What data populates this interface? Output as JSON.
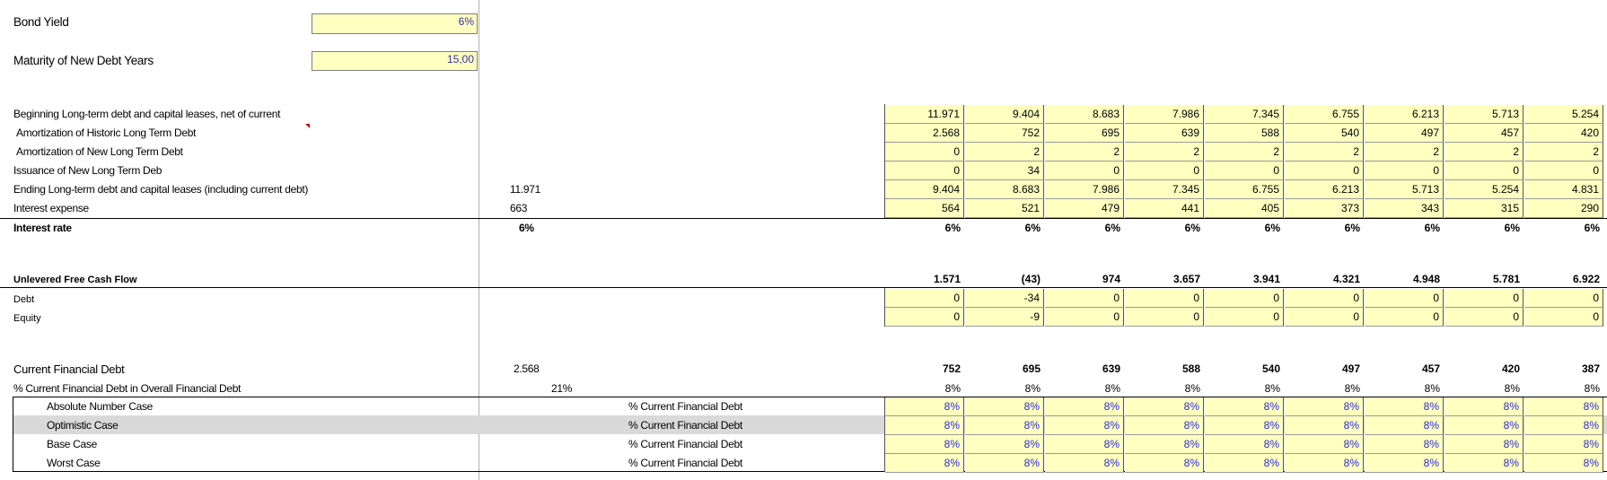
{
  "inputs": {
    "bond_yield_label": "Bond Yield",
    "bond_yield_value": "6%",
    "maturity_label": "Maturity of New Debt Years",
    "maturity_value": "15,00"
  },
  "debt_schedule": {
    "rows": [
      {
        "label": "Beginning Long-term debt and capital leases, net of current",
        "base": "",
        "values": [
          "11.971",
          "9.404",
          "8.683",
          "7.986",
          "7.345",
          "6.755",
          "6.213",
          "5.713",
          "5.254"
        ]
      },
      {
        "label": "Amortization of Historic Long Term Debt",
        "base": "",
        "values": [
          "2.568",
          "752",
          "695",
          "639",
          "588",
          "540",
          "497",
          "457",
          "420"
        ]
      },
      {
        "label": "Amortization of New Long Term Debt",
        "base": "",
        "values": [
          "0",
          "2",
          "2",
          "2",
          "2",
          "2",
          "2",
          "2",
          "2"
        ]
      },
      {
        "label": "Issuance of New Long Term Deb",
        "base": "",
        "values": [
          "0",
          "34",
          "0",
          "0",
          "0",
          "0",
          "0",
          "0",
          "0"
        ]
      },
      {
        "label": "Ending Long-term debt and capital leases (including current debt)",
        "base": "11.971",
        "values": [
          "9.404",
          "8.683",
          "7.986",
          "7.345",
          "6.755",
          "6.213",
          "5.713",
          "5.254",
          "4.831"
        ]
      },
      {
        "label": "Interest expense",
        "base": "663",
        "values": [
          "564",
          "521",
          "479",
          "441",
          "405",
          "373",
          "343",
          "315",
          "290"
        ]
      }
    ],
    "interest_rate": {
      "label": "Interest rate",
      "base": "6%",
      "values": [
        "6%",
        "6%",
        "6%",
        "6%",
        "6%",
        "6%",
        "6%",
        "6%",
        "6%"
      ]
    }
  },
  "fcf": {
    "label": "Unlevered Free Cash Flow",
    "values": [
      "1.571",
      "(43)",
      "974",
      "3.657",
      "3.941",
      "4.321",
      "4.948",
      "5.781",
      "6.922"
    ],
    "debt": {
      "label": "Debt",
      "values": [
        "0",
        "-34",
        "0",
        "0",
        "0",
        "0",
        "0",
        "0",
        "0"
      ]
    },
    "equity": {
      "label": "Equity",
      "values": [
        "0",
        "-9",
        "0",
        "0",
        "0",
        "0",
        "0",
        "0",
        "0"
      ]
    }
  },
  "current_debt": {
    "label": "Current Financial Debt",
    "base": "2.568",
    "values": [
      "752",
      "695",
      "639",
      "588",
      "540",
      "497",
      "457",
      "420",
      "387"
    ],
    "pct_label": "% Current Financial Debt in Overall Financial Debt",
    "pct_base": "21%",
    "pct_values": [
      "8%",
      "8%",
      "8%",
      "8%",
      "8%",
      "8%",
      "8%",
      "8%",
      "8%"
    ]
  },
  "scenarios": [
    {
      "name": "Absolute Number Case",
      "metric": "% Current Financial Debt",
      "values": [
        "8%",
        "8%",
        "8%",
        "8%",
        "8%",
        "8%",
        "8%",
        "8%",
        "8%"
      ]
    },
    {
      "name": "Optimistic Case",
      "metric": "% Current Financial Debt",
      "values": [
        "8%",
        "8%",
        "8%",
        "8%",
        "8%",
        "8%",
        "8%",
        "8%",
        "8%"
      ]
    },
    {
      "name": "Base Case",
      "metric": "% Current Financial Debt",
      "values": [
        "8%",
        "8%",
        "8%",
        "8%",
        "8%",
        "8%",
        "8%",
        "8%",
        "8%"
      ]
    },
    {
      "name": "Worst Case",
      "metric": "% Current Financial Debt",
      "values": [
        "8%",
        "8%",
        "8%",
        "8%",
        "8%",
        "8%",
        "8%",
        "8%",
        "8%"
      ]
    }
  ]
}
